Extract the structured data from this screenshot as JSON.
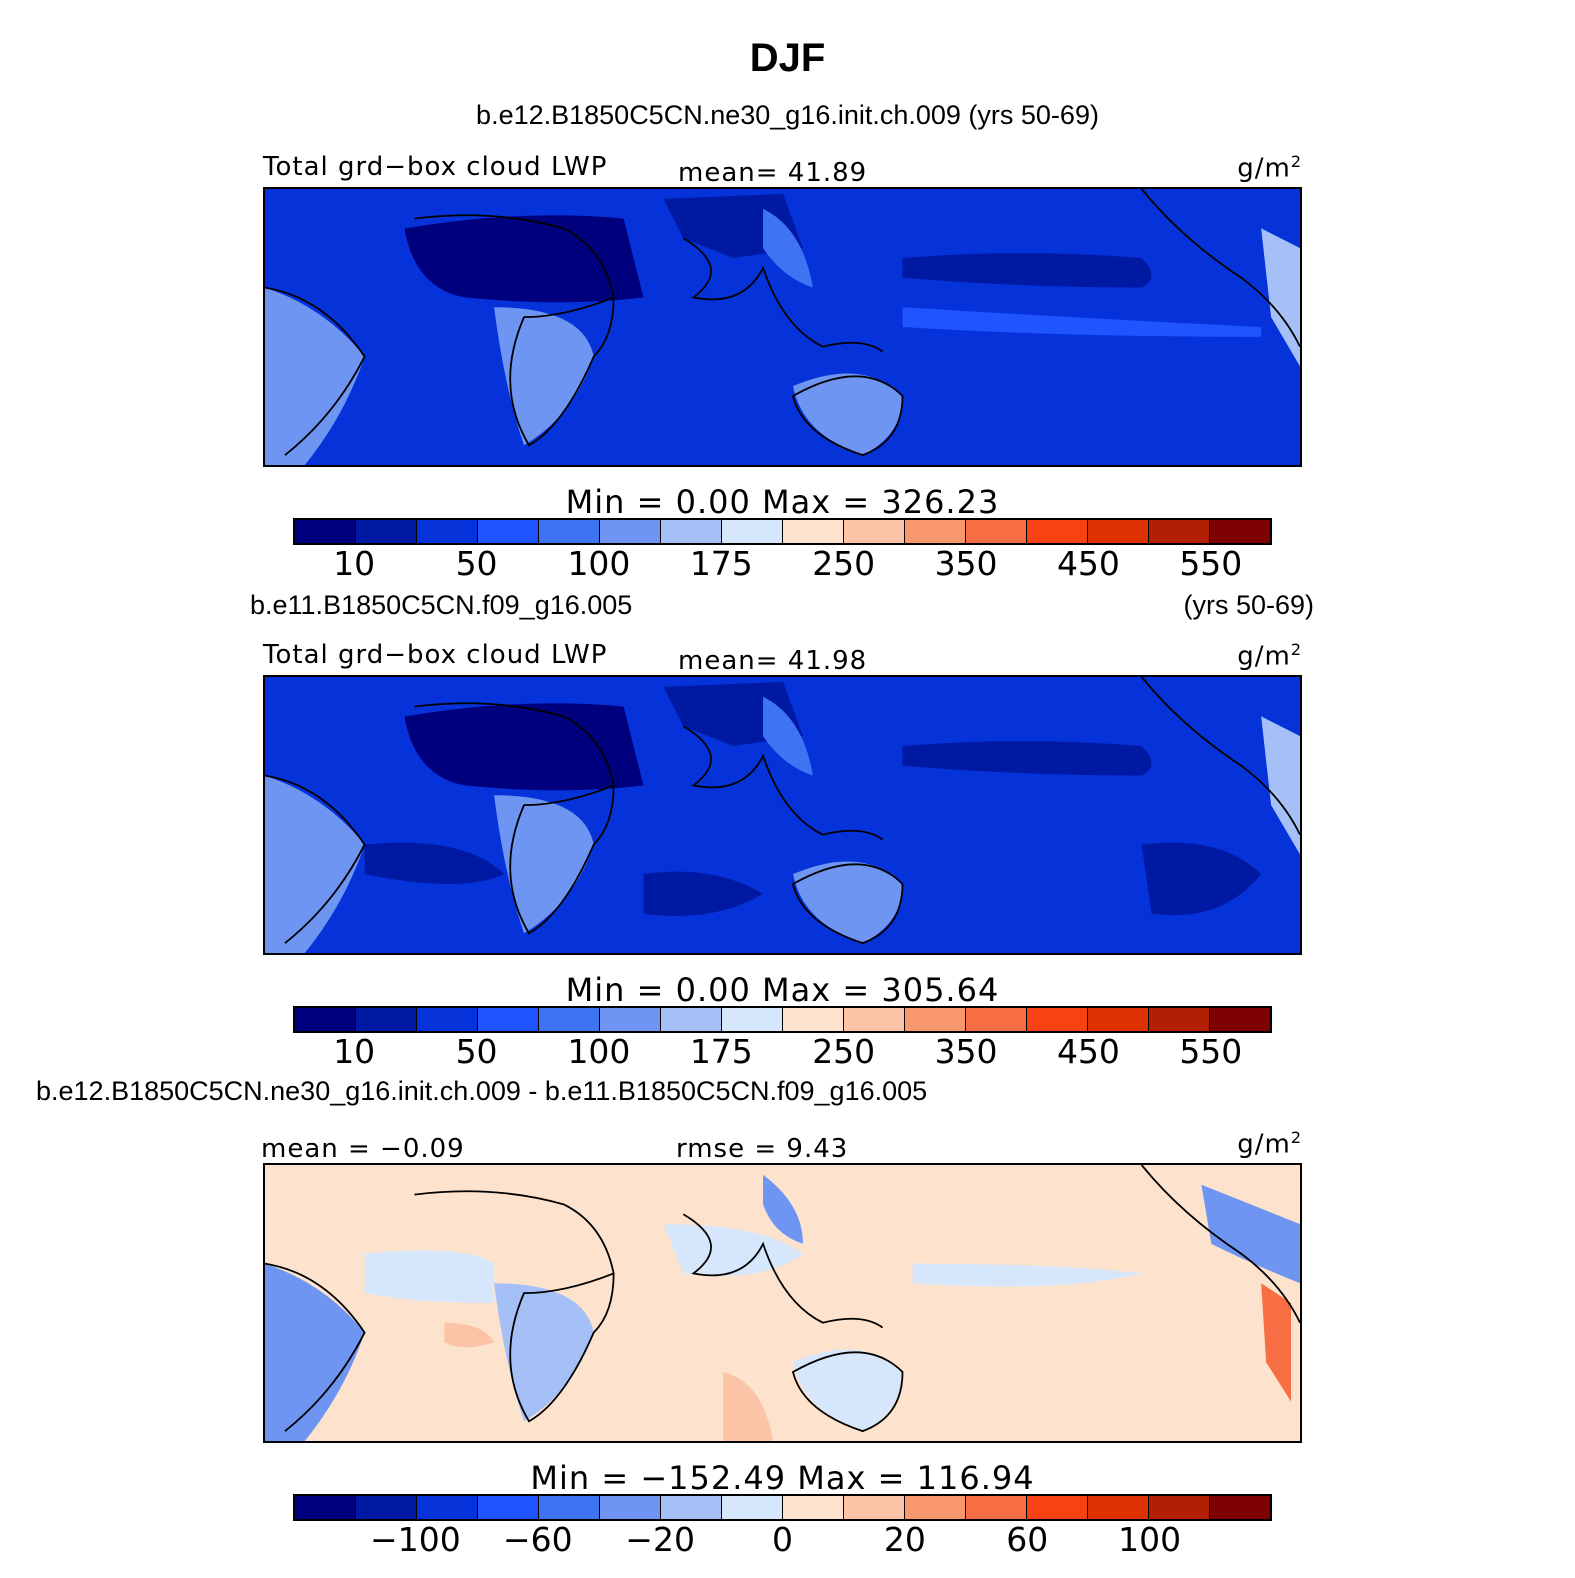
{
  "title": "DJF",
  "colors": [
    "#00007f",
    "#0019a3",
    "#0633d9",
    "#1f54ff",
    "#3e74f4",
    "#6e95f2",
    "#a5c0f7",
    "#d6e6fb",
    "#fde3cd",
    "#fbc4a6",
    "#f8966e",
    "#f86e44",
    "#f74313",
    "#de3203",
    "#b21f04",
    "#7f0000"
  ],
  "panel1": {
    "case": "b.e12.B1850C5CN.ne30_g16.init.ch.009 (yrs 50-69)",
    "left": "Total grd−box cloud LWP",
    "center": "mean=   41.89",
    "units": "g/m",
    "units_sup": "2",
    "minmax": "Min  =     0.00  Max  =  326.23",
    "ticks": [
      "10",
      "50",
      "100",
      "175",
      "250",
      "350",
      "450",
      "550"
    ]
  },
  "panel2": {
    "case": "b.e11.B1850C5CN.f09_g16.005",
    "years": "(yrs 50-69)",
    "left": "Total grd−box cloud LWP",
    "center": "mean=   41.98",
    "units": "g/m",
    "units_sup": "2",
    "minmax": "Min  =     0.00  Max  =  305.64",
    "ticks": [
      "10",
      "50",
      "100",
      "175",
      "250",
      "350",
      "450",
      "550"
    ]
  },
  "panel3": {
    "case": "b.e12.B1850C5CN.ne30_g16.init.ch.009 - b.e11.B1850C5CN.f09_g16.005",
    "left": "mean  =   −0.09",
    "center": "rmse  =     9.43",
    "units": "g/m",
    "units_sup": "2",
    "minmax": "Min  =  −152.49  Max  =  116.94",
    "ticks": [
      "−100",
      "−60",
      "−20",
      "0",
      "20",
      "60",
      "100"
    ]
  }
}
